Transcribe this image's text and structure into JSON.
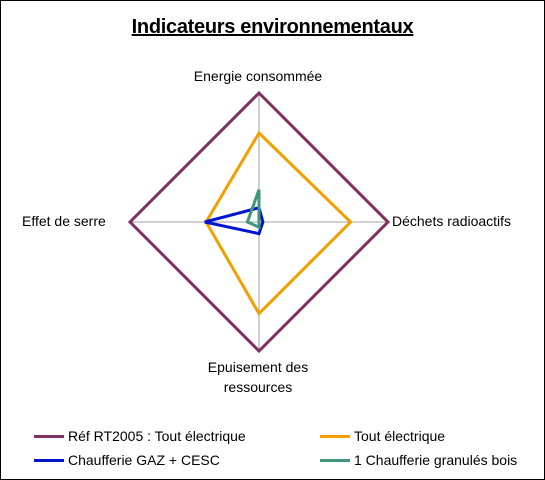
{
  "chart_data": {
    "type": "radar",
    "title": "Indicateurs environnementaux",
    "axes": [
      "Energie consommée",
      "Déchets radioactifs",
      "Epuisement des ressources",
      "Effet de serre"
    ],
    "axis_label_lines": {
      "bottom": [
        "Epuisement des",
        "ressources"
      ]
    },
    "rmax": 100,
    "grid": "axes-only",
    "legend_position": "bottom",
    "series": [
      {
        "name": "Réf RT2005 : Tout électrique",
        "color": "#7f3060",
        "values": [
          100,
          100,
          100,
          100
        ]
      },
      {
        "name": "Tout électrique",
        "color": "#f0a000",
        "values": [
          69,
          71,
          71,
          41
        ]
      },
      {
        "name": "Chaufferie GAZ + CESC",
        "color": "#0015d0",
        "values": [
          11,
          3,
          9,
          42
        ]
      },
      {
        "name": "1 Chaufferie granulés bois",
        "color": "#40967a",
        "values": [
          25,
          0,
          4,
          9
        ]
      }
    ]
  }
}
